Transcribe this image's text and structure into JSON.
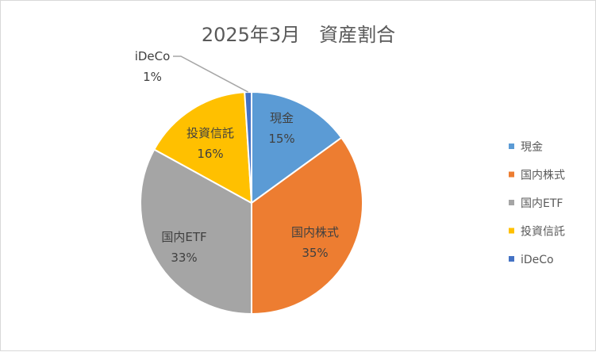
{
  "chart_data": {
    "type": "pie",
    "title": "2025年3月　資産割合",
    "categories": [
      "現金",
      "国内株式",
      "国内ETF",
      "投資信託",
      "iDeCo"
    ],
    "values": [
      15,
      35,
      33,
      16,
      1
    ],
    "value_labels": [
      "15%",
      "35%",
      "33%",
      "16%",
      "1%"
    ],
    "colors": [
      "#5b9bd5",
      "#ed7d31",
      "#a5a5a5",
      "#ffc000",
      "#4472c4"
    ],
    "legend": "right",
    "legend_entries": [
      "現金",
      "国内株式",
      "国内ETF",
      "投資信託",
      "iDeCo"
    ],
    "start_angle_deg": 0,
    "direction": "clockwise"
  }
}
